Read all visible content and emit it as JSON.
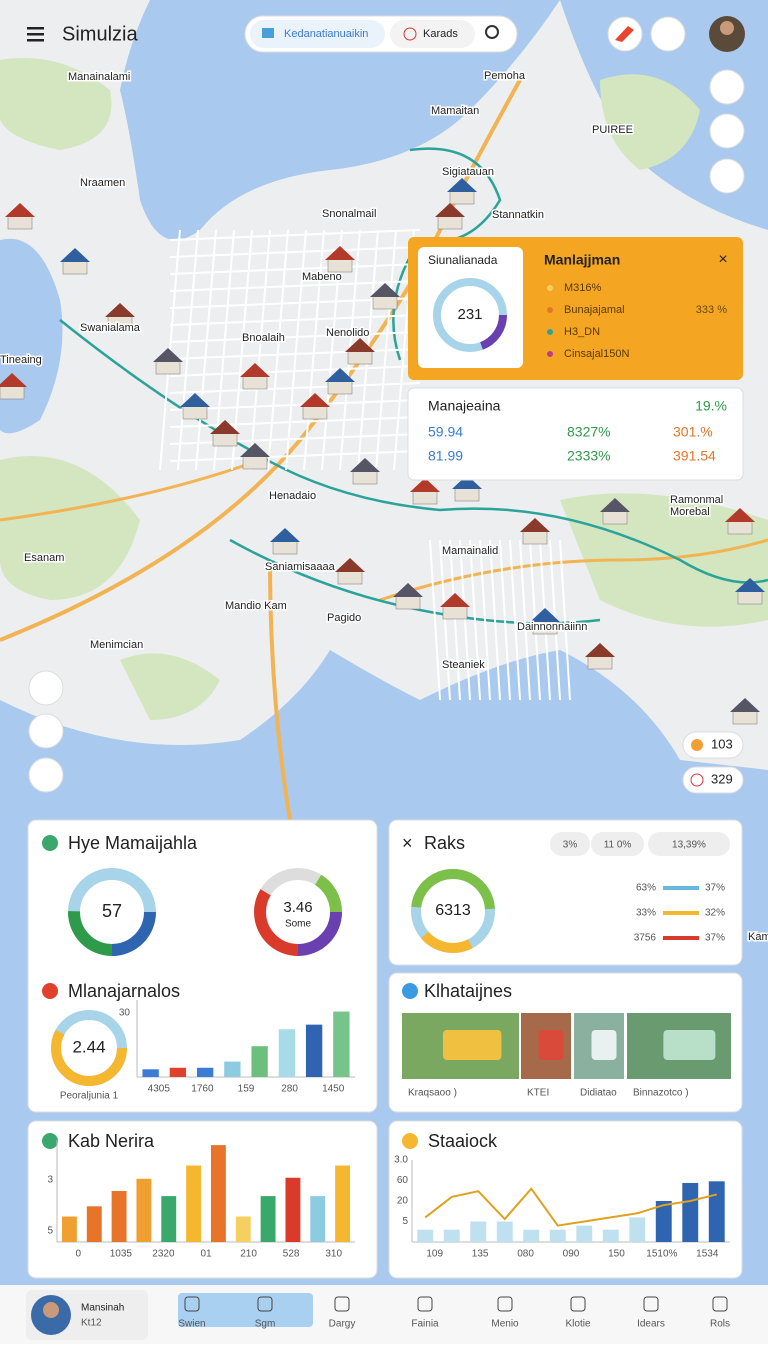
{
  "header": {
    "title": "Simulzia",
    "search_tab": "Kedanatianuaikin",
    "search_tab2": "Karads"
  },
  "map_labels": [
    "Manainalami",
    "Nraamen",
    "Pemoha",
    "Mamaitan",
    "PUIREE",
    "Sigiatauan",
    "Snonalmail",
    "Stannatkin",
    "Mabeno",
    "Swanialama",
    "Bnoalaih",
    "Nenolido",
    "Tineaing",
    "Henadaio",
    "Ramonmal",
    "Morebal",
    "Mamainalid",
    "Esanam",
    "Mandio Kam",
    "Pagido",
    "Menimcian",
    "Dainnonnaiinn",
    "Steaniek",
    "Saniamisaaaa",
    "Kam"
  ],
  "popup": {
    "card_title": "Siunalianada",
    "card_value": "231",
    "title": "Manlajjman",
    "items": [
      "M316%",
      "Bunajajamal",
      "H3_DN",
      "Cinsajal150N"
    ],
    "item_value": "333 %"
  },
  "stats_card": {
    "title": "Manajeaina",
    "value": "19.%",
    "rows": [
      [
        "59.94",
        "8327%",
        "301.%"
      ],
      [
        "81.99",
        "2333%",
        "391.54"
      ]
    ]
  },
  "map_badges": [
    "103",
    "329"
  ],
  "panel_overview": {
    "title": "Hye Mamaijahla",
    "donut1": "57",
    "donut2": "3.46",
    "donut2_sub": "Some"
  },
  "panel_bars": {
    "title": "Mlanajarnalos",
    "donut": "2.44",
    "donut_sub": "Peoraljunia 1",
    "ytick": "30",
    "xlabels": [
      "4305",
      "1760",
      "159",
      "280",
      "1450"
    ],
    "ylim": [
      0,
      100
    ],
    "values": [
      10,
      12,
      12,
      20,
      40,
      62,
      68,
      85
    ],
    "colors": [
      "#3a7bd5",
      "#e0412c",
      "#3a7bd5",
      "#8ccbe0",
      "#6cbf7c",
      "#a8dbe8",
      "#2f64b0",
      "#76c48a"
    ]
  },
  "panel_raks": {
    "title": "Raks",
    "chips": [
      "3%",
      "11 0%",
      "13,39%"
    ],
    "donut": "6313",
    "rows": [
      [
        "63%",
        "37%"
      ],
      [
        "33%",
        "32%"
      ],
      [
        "3756",
        "37%"
      ]
    ]
  },
  "panel_photos": {
    "title": "Klhataijnes",
    "captions": [
      "Kraqsaoo )",
      "KTEI",
      "Didiatao",
      "Binnazotco )"
    ]
  },
  "panel_kab": {
    "title": "Kab Nerira",
    "yticks": [
      "3",
      "5"
    ],
    "xlabels": [
      "0",
      "1035",
      "2320",
      "01",
      "210",
      "528",
      "310"
    ],
    "ylim": [
      0,
      100
    ],
    "values": [
      25,
      35,
      50,
      62,
      45,
      75,
      95,
      25,
      45,
      63,
      45,
      75
    ],
    "colors": [
      "#f0a030",
      "#e8742a",
      "#e8742a",
      "#f0a030",
      "#3aa86a",
      "#f5b730",
      "#e8742a",
      "#f5d060",
      "#3aa86a",
      "#d93a2a",
      "#8ccbe0",
      "#f5b730"
    ]
  },
  "panel_stock": {
    "title": "Staaiock",
    "yticks": [
      "3.0",
      "60",
      "20",
      "5"
    ],
    "xlabels": [
      "109",
      "135",
      "080",
      "090",
      "150",
      "1510%",
      "1534"
    ],
    "ylim": [
      0,
      100
    ],
    "values": [
      15,
      15,
      25,
      25,
      15,
      15,
      20,
      15,
      30,
      50,
      72,
      74
    ],
    "colors": [
      "#bfe0ee",
      "#bfe0ee",
      "#bfe0ee",
      "#bfe0ee",
      "#bfe0ee",
      "#bfe0ee",
      "#bfe0ee",
      "#bfe0ee",
      "#bfe0ee",
      "#2f64b0",
      "#2f64b0",
      "#2f64b0"
    ],
    "line": [
      30,
      55,
      62,
      28,
      65,
      20,
      25,
      30,
      35,
      45,
      50,
      58
    ]
  },
  "nav": {
    "user": "Mansinah",
    "user_sub": "Kt12",
    "tabs": [
      "Swien",
      "Sgm",
      "Dargy",
      "Fainia",
      "Menio",
      "Klotie",
      "Idears",
      "Rols"
    ]
  }
}
